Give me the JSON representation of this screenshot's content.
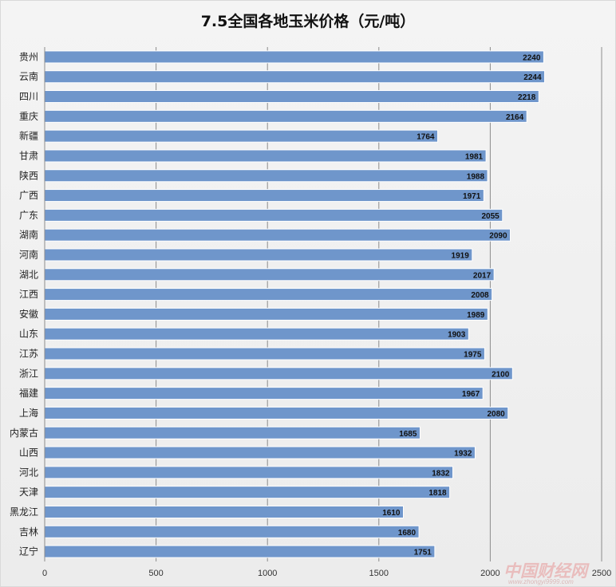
{
  "chart_data": {
    "type": "bar",
    "orientation": "horizontal",
    "title": "7.5全国各地玉米价格（元/吨）",
    "xlabel": "",
    "ylabel": "",
    "xlim": [
      0,
      2500
    ],
    "ticks": [
      0,
      500,
      1000,
      1500,
      2000,
      2500
    ],
    "grid": true,
    "legend": "none",
    "categories": [
      "贵州",
      "云南",
      "四川",
      "重庆",
      "新疆",
      "甘肃",
      "陕西",
      "广西",
      "广东",
      "湖南",
      "河南",
      "湖北",
      "江西",
      "安徽",
      "山东",
      "江苏",
      "浙江",
      "福建",
      "上海",
      "内蒙古",
      "山西",
      "河北",
      "天津",
      "黑龙江",
      "吉林",
      "辽宁"
    ],
    "values": [
      2240,
      2244,
      2218,
      2164,
      1764,
      1981,
      1988,
      1971,
      2055,
      2090,
      1919,
      2017,
      2008,
      1989,
      1903,
      1975,
      2100,
      1967,
      2080,
      1685,
      1932,
      1832,
      1818,
      1610,
      1680,
      1751
    ],
    "bar_color": "#6f96cb",
    "bar_stroke": "#ffffff"
  },
  "watermark": {
    "logo_text": "中国财经网",
    "url_text": "www.zhongyi9999.com"
  }
}
